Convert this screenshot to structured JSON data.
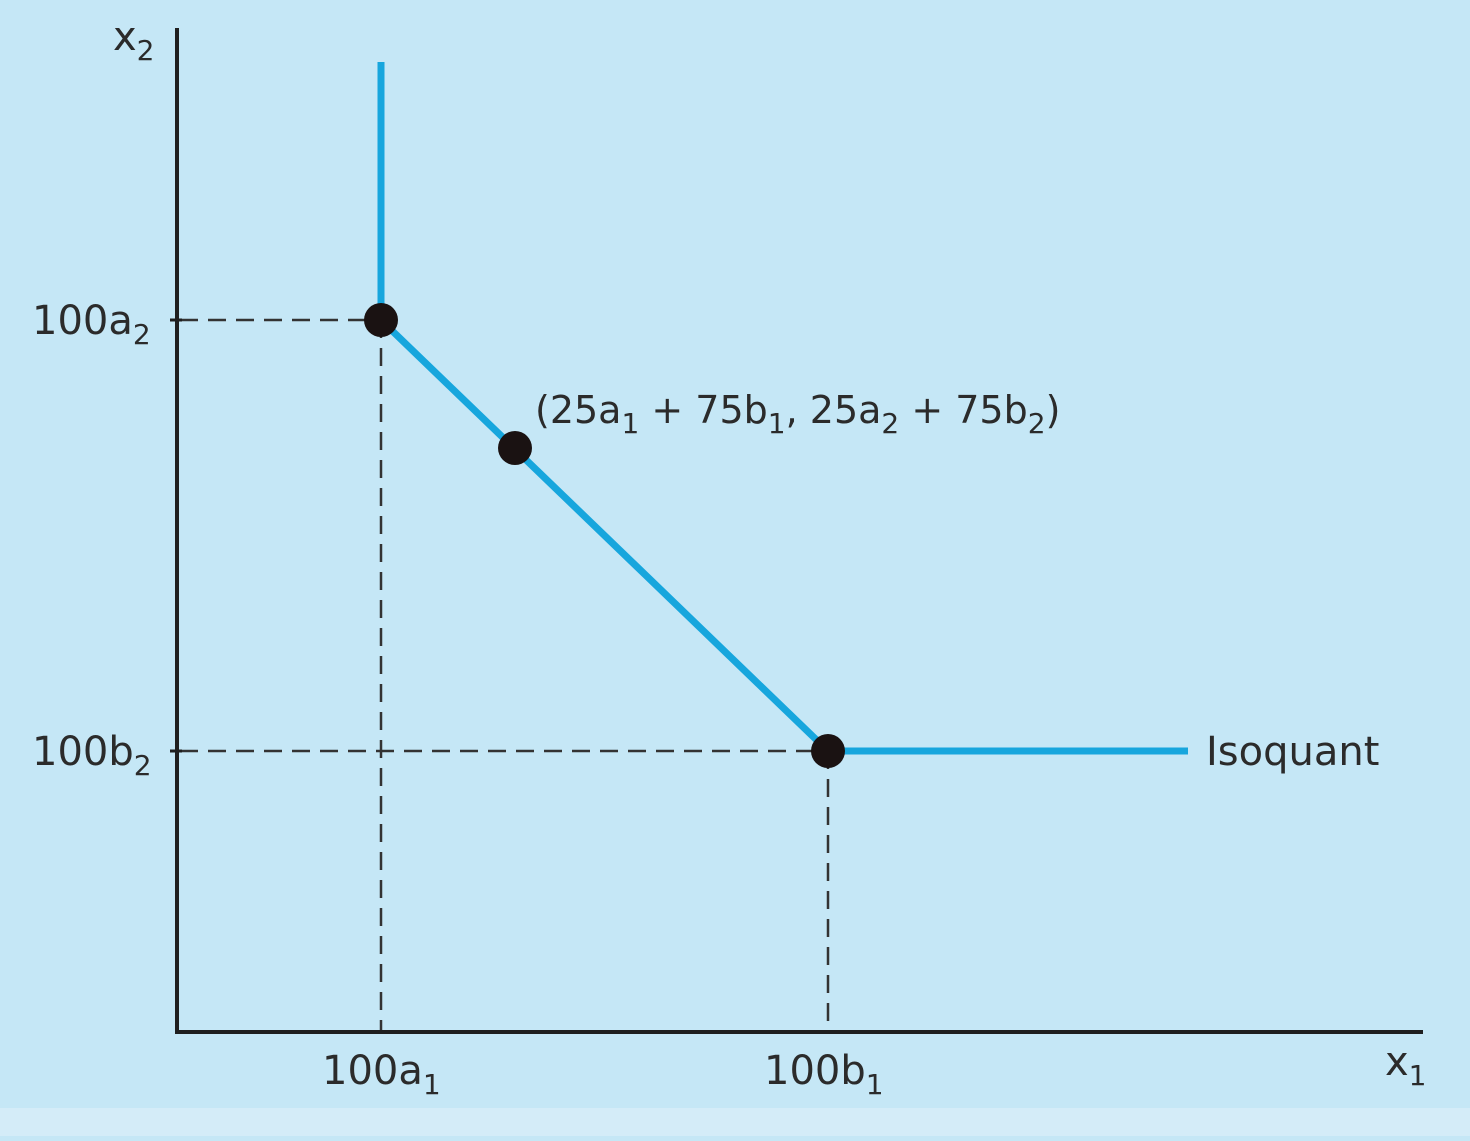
{
  "diagram": {
    "axes": {
      "x": {
        "label_main": "x",
        "label_sub": "1"
      },
      "y": {
        "label_main": "x",
        "label_sub": "2"
      }
    },
    "ticks": {
      "x_a1": {
        "main": "100a",
        "sub": "1"
      },
      "x_b1": {
        "main": "100b",
        "sub": "1"
      },
      "y_a2": {
        "main": "100a",
        "sub": "2"
      },
      "y_b2": {
        "main": "100b",
        "sub": "2"
      }
    },
    "points_label": {
      "p1": "(25a",
      "s1": "1",
      "p2": " + 75b",
      "s2": "1",
      "p3": ", 25a",
      "s3": "2",
      "p4": " + 75b",
      "s4": "2",
      "p5": ")"
    },
    "curve_label": "Isoquant",
    "colors": {
      "background": "#c5e7f6",
      "isoquant": "#17a6dd",
      "axis": "#1f1f1f",
      "point": "#1a1212",
      "dashed": "#333333"
    }
  }
}
